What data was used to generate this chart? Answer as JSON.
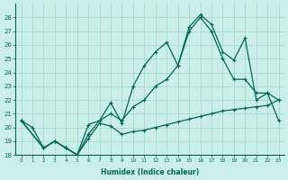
{
  "xlabel": "Humidex (Indice chaleur)",
  "bg_color": "#cceee8",
  "grid_color": "#aaddcc",
  "line_color": "#006655",
  "xlim": [
    -0.5,
    23.5
  ],
  "ylim": [
    18,
    29
  ],
  "xticks": [
    0,
    1,
    2,
    3,
    4,
    5,
    6,
    7,
    8,
    9,
    10,
    11,
    12,
    13,
    14,
    15,
    16,
    17,
    18,
    19,
    20,
    21,
    22,
    23
  ],
  "yticks": [
    18,
    19,
    20,
    21,
    22,
    23,
    24,
    25,
    26,
    27,
    28
  ],
  "line1_x": [
    0,
    1,
    2,
    3,
    4,
    5,
    6,
    7,
    8,
    9,
    10,
    11,
    12,
    13,
    14,
    15,
    16,
    17,
    18,
    19,
    20,
    21,
    22,
    23
  ],
  "line1_y": [
    20.5,
    20.0,
    18.5,
    19.0,
    18.5,
    18.0,
    19.2,
    20.3,
    20.1,
    19.5,
    19.7,
    19.8,
    20.0,
    20.2,
    20.4,
    20.6,
    20.8,
    21.0,
    21.2,
    21.3,
    21.4,
    21.5,
    21.6,
    22.0
  ],
  "line2_x": [
    0,
    2,
    3,
    4,
    5,
    6,
    7,
    8,
    9,
    10,
    11,
    12,
    13,
    14,
    15,
    16,
    17,
    18,
    19,
    20,
    21,
    22,
    23
  ],
  "line2_y": [
    20.5,
    18.5,
    19.0,
    18.5,
    18.0,
    19.5,
    20.5,
    21.0,
    20.5,
    21.5,
    22.0,
    23.0,
    23.5,
    24.5,
    27.0,
    28.0,
    27.0,
    25.0,
    23.5,
    23.5,
    22.5,
    22.5,
    22.0
  ],
  "line3_x": [
    0,
    2,
    3,
    4,
    5,
    6,
    7,
    8,
    9,
    10,
    11,
    12,
    13,
    14,
    15,
    16,
    17,
    18,
    19,
    20,
    21,
    22,
    23
  ],
  "line3_y": [
    20.5,
    18.5,
    19.0,
    18.5,
    18.0,
    20.2,
    20.5,
    21.8,
    20.3,
    23.0,
    24.5,
    25.5,
    26.2,
    24.5,
    27.3,
    28.2,
    27.5,
    25.5,
    24.9,
    26.5,
    22.0,
    22.5,
    20.5
  ]
}
